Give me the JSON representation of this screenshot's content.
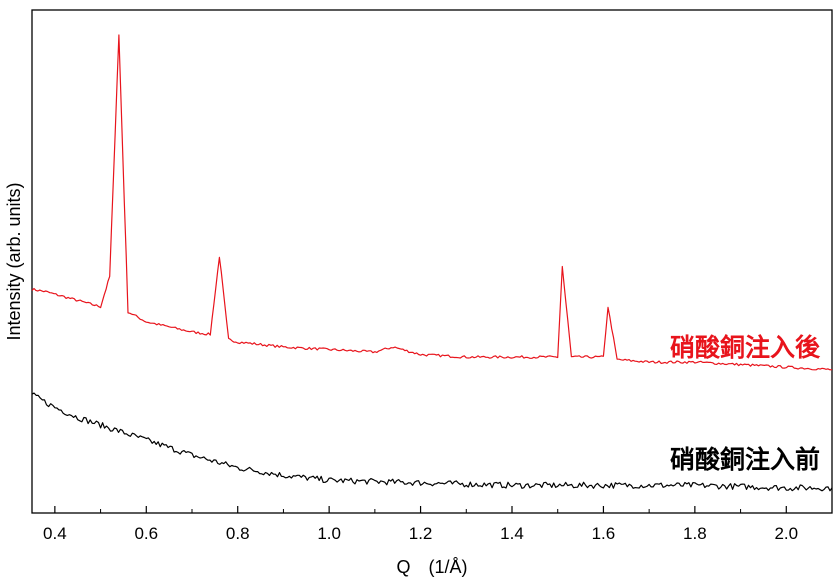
{
  "chart_data": {
    "type": "line",
    "xlabel": "Q　(1/Å)",
    "ylabel": "Intensity (arb. units)",
    "xlim": [
      0.35,
      2.1
    ],
    "ylim": [
      0,
      1
    ],
    "x_ticks": [
      "0.4",
      "0.6",
      "0.8",
      "1.0",
      "1.2",
      "1.4",
      "1.6",
      "1.8",
      "2.0"
    ],
    "y_ticks_shown": false,
    "grid": false,
    "series": [
      {
        "name": "硝酸銅注入後",
        "color": "#e8141c",
        "x": [
          0.35,
          0.38,
          0.42,
          0.46,
          0.5,
          0.52,
          0.54,
          0.56,
          0.6,
          0.65,
          0.7,
          0.74,
          0.76,
          0.78,
          0.8,
          0.85,
          0.9,
          1.0,
          1.1,
          1.14,
          1.2,
          1.3,
          1.36,
          1.4,
          1.5,
          1.51,
          1.53,
          1.56,
          1.6,
          1.61,
          1.63,
          1.7,
          1.8,
          1.9,
          2.0,
          2.1
        ],
        "values": [
          0.445,
          0.44,
          0.43,
          0.42,
          0.41,
          0.47,
          0.95,
          0.4,
          0.38,
          0.37,
          0.36,
          0.355,
          0.51,
          0.345,
          0.34,
          0.335,
          0.33,
          0.325,
          0.32,
          0.33,
          0.315,
          0.31,
          0.31,
          0.31,
          0.31,
          0.49,
          0.31,
          0.31,
          0.31,
          0.41,
          0.305,
          0.3,
          0.3,
          0.295,
          0.29,
          0.285
        ]
      },
      {
        "name": "硝酸銅注入前",
        "color": "#000000",
        "x": [
          0.35,
          0.4,
          0.45,
          0.5,
          0.6,
          0.7,
          0.8,
          0.9,
          1.0,
          1.2,
          1.4,
          1.6,
          1.8,
          2.0,
          2.1
        ],
        "values": [
          0.235,
          0.21,
          0.19,
          0.175,
          0.145,
          0.115,
          0.09,
          0.075,
          0.065,
          0.06,
          0.055,
          0.055,
          0.055,
          0.05,
          0.05
        ]
      }
    ]
  }
}
